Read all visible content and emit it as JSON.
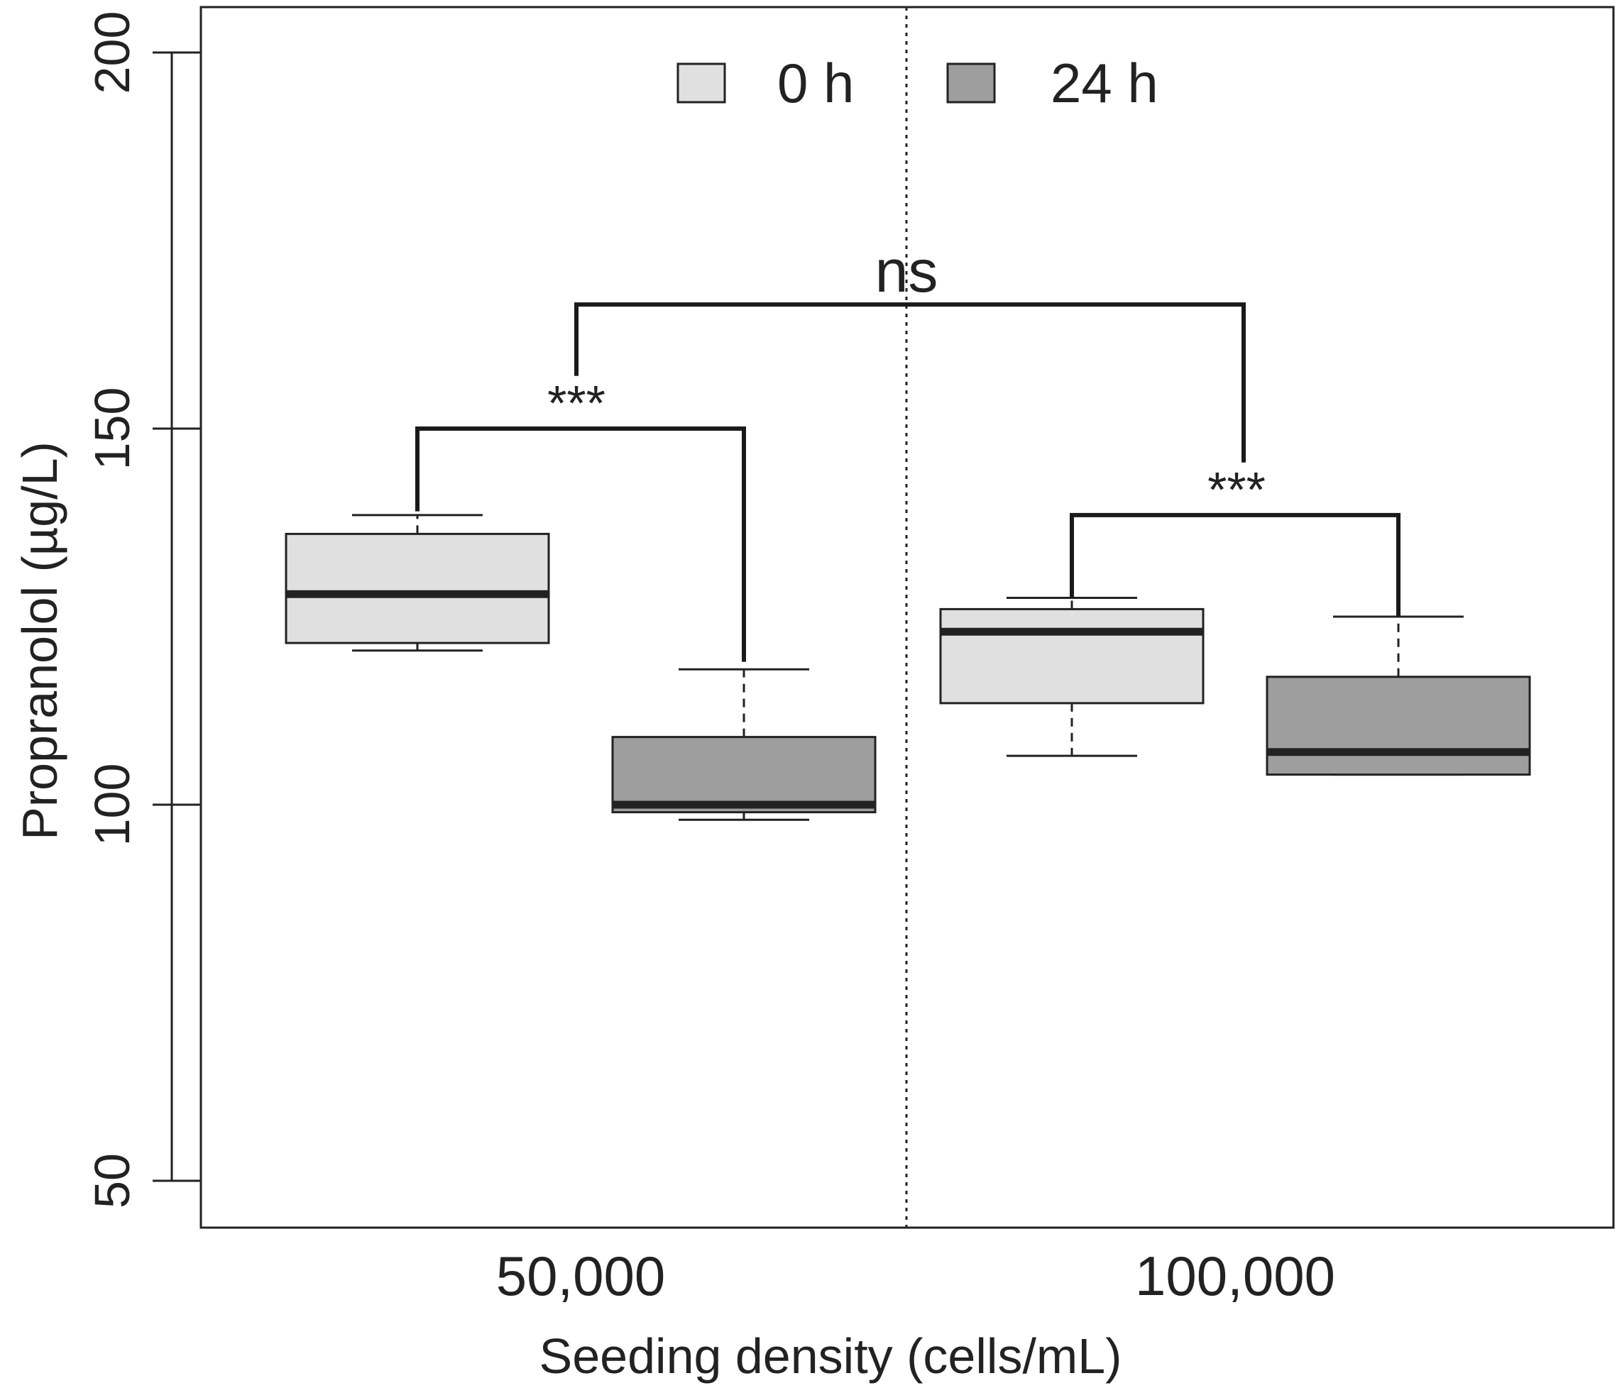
{
  "chart_data": {
    "type": "box",
    "xlabel": "Seeding density (cells/mL)",
    "ylabel": "Propranolol (µg/L)",
    "ylim": [
      44,
      200
    ],
    "yticks": [
      50,
      100,
      150,
      200
    ],
    "categories": [
      "50,000",
      "100,000"
    ],
    "legend": {
      "position": "top-center",
      "items": [
        {
          "label": "0 h",
          "color": "#e0e0e0"
        },
        {
          "label": "24 h",
          "color": "#9e9e9e"
        }
      ]
    },
    "boxes": [
      {
        "category": "50,000",
        "series": "0 h",
        "min": 120.5,
        "q1": 121.5,
        "median": 128,
        "q3": 136,
        "max": 138.5
      },
      {
        "category": "50,000",
        "series": "24 h",
        "min": 98,
        "q1": 99,
        "median": 100,
        "q3": 109,
        "max": 118
      },
      {
        "category": "100,000",
        "series": "0 h",
        "min": 106.5,
        "q1": 113.5,
        "median": 123,
        "q3": 126,
        "max": 127.5
      },
      {
        "category": "100,000",
        "series": "24 h",
        "min": 104,
        "q1": 104,
        "median": 107,
        "q3": 117,
        "max": 125
      }
    ],
    "annotations": [
      {
        "text": "***",
        "y": 150
      },
      {
        "text": "***",
        "y": 138.5
      },
      {
        "text": "ns",
        "y": 166.5
      }
    ],
    "divider": "dotted vertical line between groups"
  }
}
